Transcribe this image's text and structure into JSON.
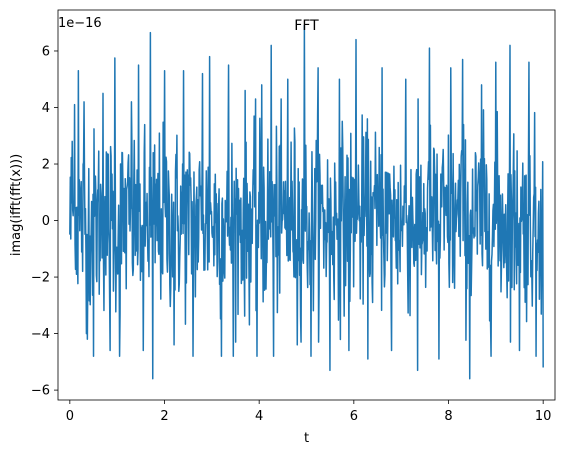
{
  "chart_data": {
    "type": "line",
    "title": "FFT",
    "xlabel": "t",
    "ylabel": "imag(ifft(fft(x)))",
    "y_offset_label": "1e−16",
    "xlim": [
      -0.25,
      10.25
    ],
    "ylim": [
      -6.35,
      7.45
    ],
    "x_ticks": [
      0,
      2,
      4,
      6,
      8,
      10
    ],
    "x_tick_labels": [
      "0",
      "2",
      "4",
      "6",
      "8",
      "10"
    ],
    "y_ticks": [
      -6,
      -4,
      -2,
      0,
      2,
      4,
      6
    ],
    "y_tick_labels": [
      "−6",
      "−4",
      "−2",
      "0",
      "2",
      "4",
      "6"
    ],
    "grid": false,
    "line_color": "#1f77b4",
    "series": [
      {
        "x_start": 0,
        "x_end": 10,
        "num_points": 1000,
        "envelope_approx": [
          2.0,
          -2.0
        ],
        "peak_values": [
          {
            "x": 0.05,
            "y": 2.8
          },
          {
            "x": 0.1,
            "y": 4.1
          },
          {
            "x": 0.18,
            "y": 5.3
          },
          {
            "x": 0.3,
            "y": 4.2
          },
          {
            "x": 0.35,
            "y": -4.0
          },
          {
            "x": 0.5,
            "y": -4.8
          },
          {
            "x": 0.7,
            "y": 4.5
          },
          {
            "x": 0.85,
            "y": -4.6
          },
          {
            "x": 0.95,
            "y": 5.75
          },
          {
            "x": 1.05,
            "y": -4.8
          },
          {
            "x": 1.3,
            "y": 4.2
          },
          {
            "x": 1.45,
            "y": 5.5
          },
          {
            "x": 1.55,
            "y": -4.6
          },
          {
            "x": 1.7,
            "y": 6.65
          },
          {
            "x": 1.75,
            "y": -5.6
          },
          {
            "x": 2.0,
            "y": 5.3
          },
          {
            "x": 2.2,
            "y": -4.4
          },
          {
            "x": 2.4,
            "y": 5.3
          },
          {
            "x": 2.6,
            "y": -4.8
          },
          {
            "x": 2.8,
            "y": 5.2
          },
          {
            "x": 2.95,
            "y": 5.8
          },
          {
            "x": 3.2,
            "y": -4.8
          },
          {
            "x": 3.35,
            "y": 5.5
          },
          {
            "x": 3.45,
            "y": -4.8
          },
          {
            "x": 3.7,
            "y": 4.6
          },
          {
            "x": 3.95,
            "y": -4.8
          },
          {
            "x": 4.05,
            "y": 4.8
          },
          {
            "x": 4.25,
            "y": 6.2
          },
          {
            "x": 4.3,
            "y": -4.8
          },
          {
            "x": 4.6,
            "y": 5.0
          },
          {
            "x": 4.8,
            "y": -4.4
          },
          {
            "x": 4.95,
            "y": 6.9
          },
          {
            "x": 5.1,
            "y": -4.8
          },
          {
            "x": 5.25,
            "y": 5.4
          },
          {
            "x": 5.5,
            "y": -5.3
          },
          {
            "x": 5.7,
            "y": 5.0
          },
          {
            "x": 5.9,
            "y": -4.6
          },
          {
            "x": 6.05,
            "y": 6.4
          },
          {
            "x": 6.3,
            "y": -4.9
          },
          {
            "x": 6.6,
            "y": 5.4
          },
          {
            "x": 6.8,
            "y": -4.6
          },
          {
            "x": 7.1,
            "y": 5.0
          },
          {
            "x": 7.35,
            "y": -5.3
          },
          {
            "x": 7.6,
            "y": 6.1
          },
          {
            "x": 7.8,
            "y": -4.9
          },
          {
            "x": 8.05,
            "y": 5.4
          },
          {
            "x": 8.3,
            "y": 5.7
          },
          {
            "x": 8.45,
            "y": -5.6
          },
          {
            "x": 8.7,
            "y": 4.8
          },
          {
            "x": 8.9,
            "y": -4.8
          },
          {
            "x": 9.0,
            "y": 5.6
          },
          {
            "x": 9.3,
            "y": 6.2
          },
          {
            "x": 9.5,
            "y": -4.6
          },
          {
            "x": 9.7,
            "y": 5.6
          },
          {
            "x": 9.85,
            "y": -4.8
          },
          {
            "x": 9.95,
            "y": 1.1
          },
          {
            "x": 10.0,
            "y": -5.2
          }
        ]
      }
    ]
  }
}
